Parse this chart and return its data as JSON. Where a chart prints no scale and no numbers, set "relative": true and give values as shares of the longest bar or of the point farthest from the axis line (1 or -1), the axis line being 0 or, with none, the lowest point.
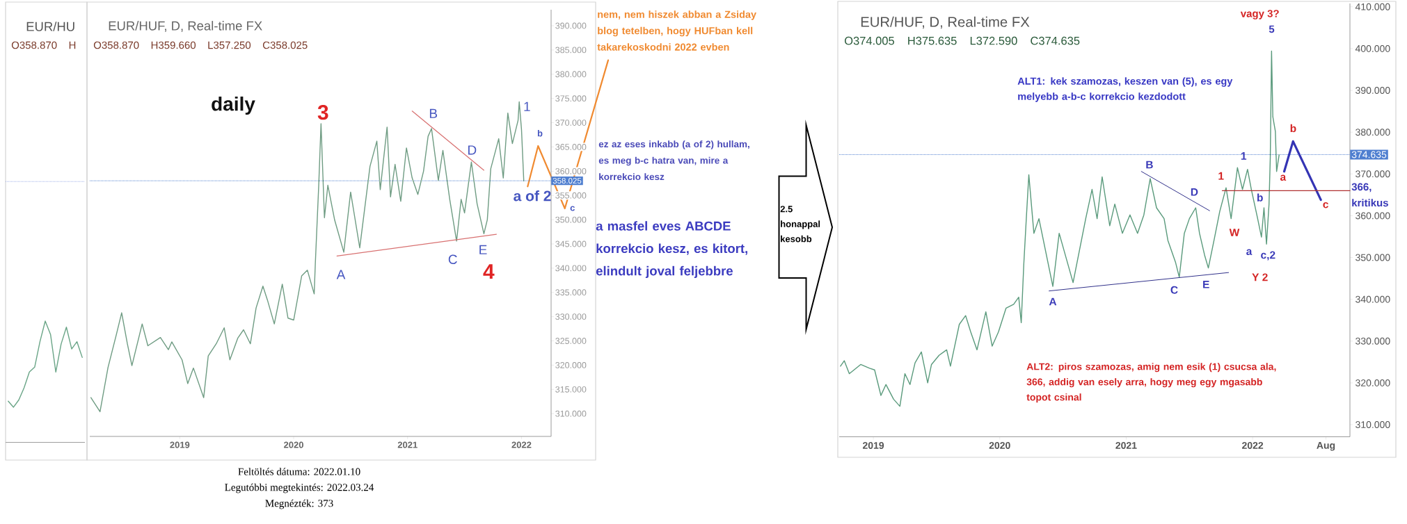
{
  "chart_data": [
    {
      "type": "line",
      "title": "EUR/HU",
      "subtitle": "O358.870 H",
      "relative": true,
      "categories": [
        null,
        null,
        null,
        null,
        null,
        null,
        null,
        null,
        null,
        null,
        null,
        null,
        null,
        null,
        null
      ],
      "series": [
        {
          "color": "#6aa587",
          "values": [
            0.34,
            0.29,
            0.35,
            0.45,
            0.58,
            0.62,
            0.83,
            1.0,
            0.89,
            0.58,
            0.81,
            0.95,
            0.77,
            0.83,
            0.7
          ]
        }
      ],
      "ref_lines": [
        {
          "axis": "y",
          "value": 2.15,
          "color": "#9db0e8",
          "line_style": "dotted"
        }
      ]
    },
    {
      "type": "line",
      "title": "EUR/HUF, D, Real-time FX",
      "subtitle": "O358.870 H359.660 L357.250 C358.025",
      "xlim": [
        2018.21,
        2022.26
      ],
      "xticks": [
        2019,
        2020,
        2021,
        2022
      ],
      "ylim": [
        305.3,
        393.3
      ],
      "yticks": [
        {
          "value": 310,
          "label": "310.000"
        },
        {
          "value": 315,
          "label": "315.000"
        },
        {
          "value": 320,
          "label": "320.000"
        },
        {
          "value": 325,
          "label": "325.000"
        },
        {
          "value": 330,
          "label": "330.000"
        },
        {
          "value": 335,
          "label": "335.000"
        },
        {
          "value": 340,
          "label": "340.000"
        },
        {
          "value": 345,
          "label": "345.000"
        },
        {
          "value": 350,
          "label": "350.000"
        },
        {
          "value": 355,
          "label": "355.000"
        },
        {
          "value": 360,
          "label": "360.000"
        },
        {
          "value": 365,
          "label": "365.000"
        },
        {
          "value": 370,
          "label": "370.000"
        },
        {
          "value": 375,
          "label": "375.000"
        },
        {
          "value": 380,
          "label": "380.000"
        },
        {
          "value": 385,
          "label": "385.000"
        },
        {
          "value": 390,
          "label": "390.000"
        }
      ],
      "series": [
        {
          "color": "#6f9c83",
          "x": [
            2018.22,
            2018.3,
            2018.37,
            2018.44,
            2018.49,
            2018.54,
            2018.58,
            2018.67,
            2018.72,
            2018.83,
            2018.9,
            2018.93,
            2019.02,
            2019.07,
            2019.12,
            2019.21,
            2019.25,
            2019.32,
            2019.39,
            2019.44,
            2019.51,
            2019.56,
            2019.62,
            2019.67,
            2019.73,
            2019.77,
            2019.83,
            2019.9,
            2019.95,
            2020.0,
            2020.07,
            2020.12,
            2020.18,
            2020.19,
            2020.22,
            2020.24,
            2020.27,
            2020.3,
            2020.36,
            2020.44,
            2020.5,
            2020.58,
            2020.67,
            2020.73,
            2020.76,
            2020.82,
            2020.85,
            2020.89,
            2020.94,
            2020.99,
            2021.04,
            2021.09,
            2021.14,
            2021.18,
            2021.21,
            2021.27,
            2021.31,
            2021.37,
            2021.43,
            2021.47,
            2021.5,
            2021.56,
            2021.61,
            2021.67,
            2021.7,
            2021.73,
            2021.8,
            2021.84,
            2021.88,
            2021.92,
            2021.97,
            2021.98,
            2022.0,
            2022.02
          ],
          "values": [
            313.3,
            310.4,
            319.5,
            326.0,
            330.8,
            324.4,
            319.9,
            328.5,
            324.0,
            325.7,
            323.2,
            324.8,
            321.1,
            316.2,
            319.4,
            313.3,
            321.9,
            324.4,
            327.7,
            321.1,
            325.6,
            327.3,
            324.4,
            331.8,
            336.3,
            333.4,
            328.5,
            336.7,
            329.7,
            329.3,
            338.4,
            339.6,
            334.7,
            340.9,
            357.1,
            369.8,
            350.4,
            357.1,
            349.9,
            343.3,
            355.7,
            344.2,
            361.0,
            366.2,
            356.2,
            369.1,
            354.7,
            361.4,
            353.8,
            364.8,
            358.6,
            355.2,
            360.0,
            367.2,
            368.8,
            358.1,
            364.3,
            354.2,
            345.6,
            354.2,
            351.4,
            361.9,
            353.3,
            347.1,
            350.0,
            360.5,
            366.7,
            358.6,
            372.0,
            365.7,
            370.5,
            374.3,
            368.6,
            358.0
          ]
        },
        {
          "color": "#d87070",
          "x": [
            2020.38,
            2021.78
          ],
          "values": [
            342.5,
            347.0
          ]
        },
        {
          "color": "#d87070",
          "x": [
            2021.04,
            2021.67
          ],
          "values": [
            372.4,
            360.2
          ]
        }
      ],
      "ref_lines": [
        {
          "axis": "y",
          "value": 358.025,
          "label": "358.025",
          "color": "#4f7fd0",
          "line_style": "dotted"
        }
      ],
      "annotations": [
        "daily",
        "3",
        "A",
        "B",
        "C",
        "D",
        "E",
        "4",
        "1",
        "b",
        "a of 2",
        "c",
        "nem, nem hiszek abban a Zsiday blog tetelben, hogy HUFban kell takarekoskodni 2022 evben",
        "ez az eses inkabb (a of 2) hullam, es meg b-c hatra van, mire a korrekcio kesz",
        "a masfel eves ABCDE korrekcio kesz, es kitort, elindult joval feljebbre",
        "Feltöltés dátuma: 2022.01.10",
        "Legutóbbi megtekintés: 2022.03.24",
        "Megnézték: 373"
      ]
    },
    {
      "type": "other",
      "annotations": [
        "2.5 honappal kesobb"
      ]
    },
    {
      "type": "line",
      "title": "EUR/HUF, D, Real-time FX",
      "subtitle": "O374.005 H375.635 L372.590 C374.635",
      "xlim": [
        2018.73,
        2022.77
      ],
      "xticks": [
        2019,
        2020,
        2021,
        2022,
        {
          "value": 2022.58,
          "label": "Aug"
        }
      ],
      "ylim": [
        307.1,
        410.8
      ],
      "yticks": [
        {
          "value": 310,
          "label": "310.000"
        },
        {
          "value": 320,
          "label": "320.000"
        },
        {
          "value": 330,
          "label": "330.000"
        },
        {
          "value": 340,
          "label": "340.000"
        },
        {
          "value": 350,
          "label": "350.000"
        },
        {
          "value": 360,
          "label": "360.000"
        },
        {
          "value": 370,
          "label": "370.000"
        },
        {
          "value": 380,
          "label": "380.000"
        },
        {
          "value": 390,
          "label": "390.000"
        },
        {
          "value": 400,
          "label": "400.000"
        },
        {
          "value": 410,
          "label": "410.000"
        }
      ],
      "series": [
        {
          "color": "#5a9a7c",
          "x": [
            2018.74,
            2018.77,
            2018.81,
            2018.9,
            2018.97,
            2019.01,
            2019.06,
            2019.1,
            2019.16,
            2019.21,
            2019.25,
            2019.29,
            2019.33,
            2019.38,
            2019.43,
            2019.46,
            2019.52,
            2019.58,
            2019.61,
            2019.68,
            2019.73,
            2019.77,
            2019.82,
            2019.89,
            2019.94,
            2019.99,
            2020.05,
            2020.11,
            2020.15,
            2020.17,
            2020.19,
            2020.21,
            2020.23,
            2020.27,
            2020.31,
            2020.42,
            2020.47,
            2020.58,
            2020.68,
            2020.73,
            2020.77,
            2020.81,
            2020.87,
            2020.91,
            2020.97,
            2021.03,
            2021.09,
            2021.14,
            2021.19,
            2021.24,
            2021.3,
            2021.33,
            2021.39,
            2021.42,
            2021.46,
            2021.5,
            2021.55,
            2021.58,
            2021.62,
            2021.65,
            2021.7,
            2021.74,
            2021.79,
            2021.83,
            2021.88,
            2021.92,
            2021.96,
            2021.99,
            2022.04,
            2022.07,
            2022.09,
            2022.11,
            2022.13,
            2022.14,
            2022.15,
            2022.16,
            2022.18,
            2022.19,
            2022.21
          ],
          "values": [
            324.0,
            325.3,
            322.2,
            324.4,
            323.5,
            323.1,
            317.0,
            319.6,
            316.1,
            314.4,
            322.2,
            319.6,
            324.8,
            327.4,
            320.0,
            324.4,
            326.6,
            327.9,
            324.0,
            334.0,
            336.1,
            332.2,
            327.9,
            337.0,
            328.8,
            332.2,
            337.9,
            338.8,
            340.5,
            334.4,
            348.3,
            359.3,
            369.8,
            355.8,
            359.3,
            343.1,
            355.8,
            344.0,
            359.3,
            366.3,
            359.3,
            369.3,
            357.6,
            362.8,
            355.8,
            360.2,
            355.8,
            360.2,
            368.9,
            361.9,
            359.3,
            354.1,
            348.9,
            345.3,
            355.8,
            359.3,
            361.9,
            355.8,
            350.6,
            347.5,
            354.9,
            361.0,
            366.7,
            359.3,
            371.5,
            366.3,
            371.1,
            366.3,
            359.3,
            354.9,
            361.9,
            353.2,
            362.8,
            374.1,
            399.4,
            383.7,
            380.2,
            370.6,
            374.6
          ]
        },
        {
          "color": "#3434b4",
          "x": [
            2022.25,
            2022.32,
            2022.54
          ],
          "values": [
            370.6,
            377.8,
            363.8
          ]
        },
        {
          "color": "#b03030",
          "x": [
            2021.76,
            2022.77
          ],
          "values": [
            366,
            366
          ]
        },
        {
          "color": "#30308a",
          "x": [
            2020.39,
            2021.81
          ],
          "values": [
            342.0,
            346.4
          ]
        },
        {
          "color": "#30308a",
          "x": [
            2021.12,
            2021.66
          ],
          "values": [
            370.6,
            361.2
          ]
        }
      ],
      "ref_lines": [
        {
          "axis": "y",
          "value": 374.635,
          "label": "374.635",
          "color": "#4f7fd0",
          "line_style": "dotted"
        }
      ],
      "annotations": [
        "vagy 3?",
        "5",
        "ALT1: kek szamozas, keszen van (5), es egy melyebb a-b-c korrekcio kezdodott",
        "B",
        "D",
        "1",
        "1",
        "W",
        "b",
        "a",
        "c,2",
        "a",
        "b",
        "c",
        {
          "text": "366, kritikus",
          "x": 2022.77,
          "y": 366
        },
        "Y 2",
        "A",
        "C",
        "E",
        "ALT2: piros szamozas, amig nem esik (1) csucsa ala, 366, addig van esely arra, hogy meg egy mgasabb topot csinal"
      ]
    }
  ]
}
